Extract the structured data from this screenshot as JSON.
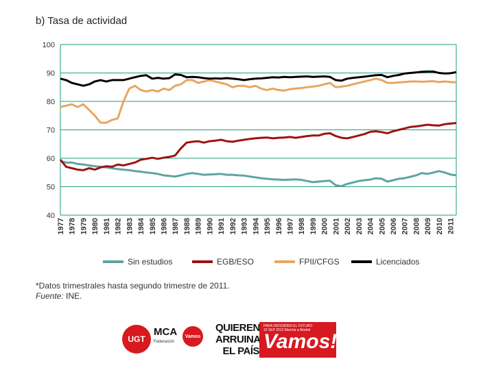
{
  "chart_title": "b) Tasa de actividad",
  "footnote": "*Datos trimestrales hasta segundo trimestre de 2011.",
  "source_label": "Fuente:",
  "source_value": "INE.",
  "logos": {
    "ugt": "UGT",
    "mca": "MCA",
    "mca_sub": "Federación",
    "vamos_badge": "Vamos",
    "quieren_lines": [
      "QUIEREN",
      "ARRUINAR",
      "EL PAÍS"
    ],
    "vamos_small_lines": [
      "PARA DEFENDER EL FUTURO",
      "15 SEP 2012 Marcha a Madrid"
    ],
    "vamos_big": "Vamos!"
  },
  "chart_data": {
    "type": "line",
    "title": "b) Tasa de actividad",
    "xlabel": "",
    "ylabel": "",
    "ylim": [
      40,
      100
    ],
    "yticks": [
      "40",
      "50",
      "60",
      "70",
      "80",
      "90",
      "100"
    ],
    "xlim": [
      1977,
      2011.5
    ],
    "xticks": [
      "1977",
      "1978",
      "1979",
      "1980",
      "1981",
      "1982",
      "1983",
      "1984",
      "1985",
      "1986",
      "1987",
      "1988",
      "1989",
      "1990",
      "1991",
      "1992",
      "1993",
      "1994",
      "1995",
      "1996",
      "1997",
      "1998",
      "1999",
      "2000",
      "2001",
      "2002",
      "2003",
      "2004",
      "2005",
      "2006",
      "2007",
      "2008",
      "2009",
      "2010",
      "2011"
    ],
    "grid": true,
    "legend_position": "bottom",
    "series": [
      {
        "name": "Sin estudios",
        "color": "#5fa3a3",
        "x": [
          1977,
          1977.5,
          1978,
          1978.5,
          1979,
          1979.5,
          1980,
          1980.5,
          1981,
          1981.5,
          1982,
          1982.5,
          1983,
          1983.5,
          1984,
          1984.5,
          1985,
          1985.5,
          1986,
          1986.5,
          1987,
          1987.5,
          1988,
          1988.5,
          1989,
          1989.5,
          1990,
          1990.5,
          1991,
          1991.5,
          1992,
          1992.5,
          1993,
          1993.5,
          1994,
          1994.5,
          1995,
          1995.5,
          1996,
          1996.5,
          1997,
          1997.5,
          1998,
          1998.5,
          1999,
          1999.5,
          2000,
          2000.5,
          2001,
          2001.5,
          2002,
          2002.5,
          2003,
          2003.5,
          2004,
          2004.5,
          2005,
          2005.5,
          2006,
          2006.5,
          2007,
          2007.5,
          2008,
          2008.5,
          2009,
          2009.5,
          2010,
          2010.5,
          2011,
          2011.5
        ],
        "values": [
          59,
          58.5,
          58.5,
          58,
          57.8,
          57.5,
          57.2,
          57,
          56.8,
          56.5,
          56.2,
          56,
          55.8,
          55.5,
          55.3,
          55,
          54.8,
          54.5,
          54,
          53.8,
          53.6,
          54,
          54.5,
          54.8,
          54.5,
          54.2,
          54.3,
          54.4,
          54.5,
          54.2,
          54.2,
          54,
          53.9,
          53.6,
          53.3,
          53,
          52.8,
          52.6,
          52.5,
          52.4,
          52.5,
          52.6,
          52.4,
          52,
          51.6,
          51.8,
          52,
          52.1,
          50.5,
          50.2,
          51,
          51.5,
          52,
          52.3,
          52.5,
          53,
          52.8,
          51.8,
          52.3,
          52.8,
          53,
          53.5,
          54,
          54.8,
          54.5,
          55,
          55.5,
          55,
          54.3,
          54
        ]
      },
      {
        "name": "EGB/ESO",
        "color": "#9e1111",
        "x": [
          1977,
          1977.5,
          1978,
          1978.5,
          1979,
          1979.5,
          1980,
          1980.5,
          1981,
          1981.5,
          1982,
          1982.5,
          1983,
          1983.5,
          1984,
          1984.5,
          1985,
          1985.5,
          1986,
          1986.5,
          1987,
          1987.5,
          1988,
          1988.5,
          1989,
          1989.5,
          1990,
          1990.5,
          1991,
          1991.5,
          1992,
          1992.5,
          1993,
          1993.5,
          1994,
          1994.5,
          1995,
          1995.5,
          1996,
          1996.5,
          1997,
          1997.5,
          1998,
          1998.5,
          1999,
          1999.5,
          2000,
          2000.5,
          2001,
          2001.5,
          2002,
          2002.5,
          2003,
          2003.5,
          2004,
          2004.5,
          2005,
          2005.5,
          2006,
          2006.5,
          2007,
          2007.5,
          2008,
          2008.5,
          2009,
          2009.5,
          2010,
          2010.5,
          2011,
          2011.5
        ],
        "values": [
          59.5,
          57,
          56.5,
          56,
          55.8,
          56.5,
          56,
          56.8,
          57.2,
          57,
          57.8,
          57.5,
          58,
          58.5,
          59.5,
          59.8,
          60.2,
          59.8,
          60.2,
          60.5,
          61,
          63.5,
          65.5,
          65.8,
          66,
          65.5,
          66,
          66.2,
          66.5,
          66,
          65.8,
          66.2,
          66.5,
          66.8,
          67,
          67.2,
          67.3,
          67,
          67.2,
          67.3,
          67.5,
          67.2,
          67.5,
          67.8,
          68,
          68,
          68.6,
          68.8,
          67.8,
          67.2,
          67,
          67.5,
          68,
          68.5,
          69.3,
          69.5,
          69.2,
          68.8,
          69.5,
          70,
          70.5,
          71,
          71.2,
          71.5,
          71.8,
          71.6,
          71.5,
          72,
          72.2,
          72.4
        ]
      },
      {
        "name": "FPII/CFGS",
        "color": "#e6a663",
        "x": [
          1977,
          1977.5,
          1978,
          1978.5,
          1979,
          1979.5,
          1980,
          1980.5,
          1981,
          1981.5,
          1982,
          1982.5,
          1983,
          1983.5,
          1984,
          1984.5,
          1985,
          1985.5,
          1986,
          1986.5,
          1987,
          1987.5,
          1988,
          1988.5,
          1989,
          1989.5,
          1990,
          1990.5,
          1991,
          1991.5,
          1992,
          1992.5,
          1993,
          1993.5,
          1994,
          1994.5,
          1995,
          1995.5,
          1996,
          1996.5,
          1997,
          1997.5,
          1998,
          1998.5,
          1999,
          1999.5,
          2000,
          2000.5,
          2001,
          2001.5,
          2002,
          2002.5,
          2003,
          2003.5,
          2004,
          2004.5,
          2005,
          2005.5,
          2006,
          2006.5,
          2007,
          2007.5,
          2008,
          2008.5,
          2009,
          2009.5,
          2010,
          2010.5,
          2011,
          2011.5
        ],
        "values": [
          78,
          78.5,
          79,
          78,
          79,
          77,
          75,
          72.5,
          72.5,
          73.5,
          74,
          80,
          84.5,
          85.5,
          84,
          83.5,
          84,
          83.5,
          84.5,
          84,
          85.5,
          86,
          87.5,
          87.5,
          86.5,
          87,
          87.5,
          87,
          86.5,
          86,
          85,
          85.5,
          85.5,
          85,
          85.5,
          84.5,
          84,
          84.5,
          84,
          83.8,
          84.3,
          84.5,
          84.7,
          85,
          85.2,
          85.5,
          86,
          86.5,
          85,
          85.2,
          85.5,
          86,
          86.5,
          87,
          87.5,
          88,
          87.5,
          86.5,
          86.5,
          86.7,
          86.8,
          87,
          87,
          86.9,
          87,
          87.1,
          86.8,
          87,
          86.8,
          86.7
        ]
      },
      {
        "name": "Licenciados",
        "color": "#000000",
        "x": [
          1977,
          1977.5,
          1978,
          1978.5,
          1979,
          1979.5,
          1980,
          1980.5,
          1981,
          1981.5,
          1982,
          1982.5,
          1983,
          1983.5,
          1984,
          1984.5,
          1985,
          1985.5,
          1986,
          1986.5,
          1987,
          1987.5,
          1988,
          1988.5,
          1989,
          1989.5,
          1990,
          1990.5,
          1991,
          1991.5,
          1992,
          1992.5,
          1993,
          1993.5,
          1994,
          1994.5,
          1995,
          1995.5,
          1996,
          1996.5,
          1997,
          1997.5,
          1998,
          1998.5,
          1999,
          1999.5,
          2000,
          2000.5,
          2001,
          2001.5,
          2002,
          2002.5,
          2003,
          2003.5,
          2004,
          2004.5,
          2005,
          2005.5,
          2006,
          2006.5,
          2007,
          2007.5,
          2008,
          2008.5,
          2009,
          2009.5,
          2010,
          2010.5,
          2011,
          2011.5
        ],
        "values": [
          88,
          87.5,
          86.5,
          86,
          85.5,
          86,
          87,
          87.5,
          87,
          87.5,
          87.5,
          87.5,
          88,
          88.5,
          89,
          89.2,
          88,
          88.3,
          88,
          88.2,
          89.5,
          89.3,
          88.5,
          88.6,
          88.5,
          88.2,
          88,
          88.1,
          88,
          88.2,
          88,
          87.8,
          87.5,
          87.8,
          88,
          88.1,
          88.3,
          88.5,
          88.4,
          88.6,
          88.5,
          88.6,
          88.7,
          88.8,
          88.6,
          88.7,
          88.8,
          88.6,
          87.5,
          87.3,
          88,
          88.3,
          88.5,
          88.7,
          89,
          89.2,
          89.3,
          88.5,
          89,
          89.3,
          89.8,
          90,
          90.2,
          90.4,
          90.5,
          90.5,
          90,
          89.8,
          89.9,
          90.3
        ]
      }
    ]
  }
}
